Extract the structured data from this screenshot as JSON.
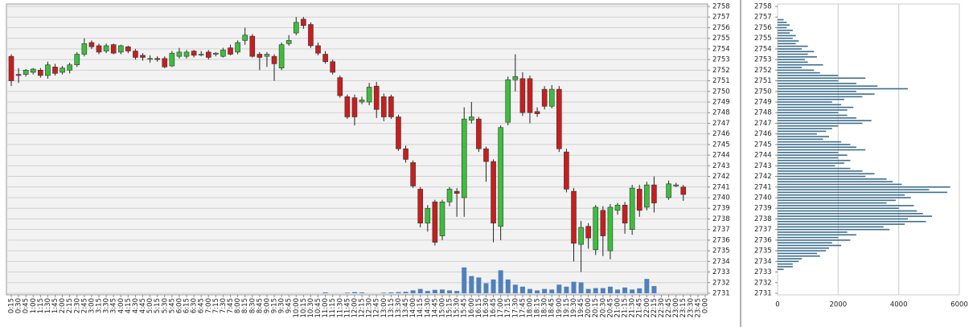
{
  "chart_data": [
    {
      "type": "candlestick",
      "x": [
        "0:15",
        "0:30",
        "0:45",
        "1:00",
        "1:15",
        "1:30",
        "1:45",
        "2:00",
        "2:15",
        "2:30",
        "2:45",
        "3:00",
        "3:15",
        "3:30",
        "3:45",
        "4:00",
        "4:15",
        "4:30",
        "4:45",
        "5:00",
        "5:15",
        "5:30",
        "5:45",
        "6:00",
        "6:15",
        "6:30",
        "6:45",
        "7:00",
        "7:15",
        "7:30",
        "7:45",
        "8:00",
        "8:15",
        "8:30",
        "8:45",
        "9:00",
        "9:15",
        "9:30",
        "9:45",
        "10:00",
        "10:15",
        "10:30",
        "10:45",
        "11:00",
        "11:15",
        "11:30",
        "11:45",
        "12:00",
        "12:15",
        "12:30",
        "12:45",
        "13:00",
        "13:15",
        "13:30",
        "13:45",
        "14:00",
        "14:15",
        "14:30",
        "14:45",
        "15:00",
        "15:15",
        "15:30",
        "15:45",
        "16:00",
        "16:15",
        "16:30",
        "16:45",
        "17:00",
        "17:15",
        "17:30",
        "17:45",
        "18:00",
        "18:15",
        "18:30",
        "18:45",
        "19:00",
        "19:15",
        "19:30",
        "19:45",
        "20:00",
        "20:15",
        "20:30",
        "20:45",
        "21:00",
        "21:15",
        "21:30",
        "21:45",
        "22:00",
        "22:15",
        "22:30",
        "22:45",
        "23:00",
        "23:15",
        "23:30",
        "23:45",
        "0:00"
      ],
      "open": [
        2753.3,
        2751.6,
        2751.6,
        2751.8,
        2752.0,
        2751.5,
        2752.3,
        2751.8,
        2752.0,
        2752.5,
        2753.5,
        2754.6,
        2754.3,
        2753.8,
        2754.4,
        2753.7,
        2754.2,
        2753.8,
        2753.4,
        2753.1,
        2753.1,
        2753.1,
        2752.4,
        2753.3,
        2753.3,
        2753.8,
        2753.5,
        2753.7,
        2753.5,
        2753.3,
        2754.1,
        2753.7,
        2754.8,
        2755.2,
        2753.5,
        2753.3,
        2753.3,
        2752.2,
        2754.5,
        2755.5,
        2756.8,
        2756.3,
        2754.3,
        2753.5,
        2752.8,
        2751.3,
        2749.5,
        2749.4,
        2749.0,
        2749.0,
        2750.5,
        2749.5,
        2749.5,
        2747.6,
        2744.6,
        2743.3,
        2740.8,
        2737.6,
        2739.6,
        2736.4,
        2739.6,
        2740.6,
        2740.0,
        2747.3,
        2747.4,
        2744.6,
        2743.4,
        2737.3,
        2747.1,
        2751.1,
        2751.2,
        2751.2,
        2748.1,
        2750.2,
        2748.6,
        2750.2,
        2744.3,
        2740.6,
        2735.6,
        2737.3,
        2735.1,
        2738.8,
        2735.0,
        2738.8,
        2739.3,
        2737.0,
        2740.8,
        2739.1,
        2741.2,
        null,
        2740.0,
        2741.1,
        2741.0,
        null,
        null,
        null
      ],
      "high": [
        2753.5,
        2752.2,
        2752.1,
        2752.2,
        2752.2,
        2752.8,
        2752.6,
        2752.4,
        2752.7,
        2753.7,
        2755.0,
        2754.8,
        2754.5,
        2754.5,
        2754.5,
        2754.4,
        2754.3,
        2754.0,
        2753.6,
        2753.4,
        2753.3,
        2753.3,
        2753.8,
        2754.1,
        2753.9,
        2753.9,
        2753.8,
        2753.9,
        2753.7,
        2754.1,
        2754.4,
        2754.8,
        2756.0,
        2755.4,
        2753.7,
        2753.7,
        2753.5,
        2754.6,
        2755.3,
        2757.0,
        2757.0,
        2756.5,
        2754.6,
        2753.8,
        2753.0,
        2751.5,
        2749.7,
        2749.7,
        2749.5,
        2750.8,
        2750.9,
        2749.8,
        2749.7,
        2747.8,
        2744.9,
        2743.5,
        2741.0,
        2739.3,
        2739.8,
        2739.8,
        2741.0,
        2740.9,
        2748.5,
        2749.0,
        2747.6,
        2744.8,
        2743.6,
        2746.8,
        2751.4,
        2753.5,
        2751.8,
        2751.5,
        2748.5,
        2750.5,
        2750.6,
        2750.5,
        2744.6,
        2740.9,
        2737.8,
        2737.6,
        2739.3,
        2739.2,
        2739.4,
        2739.5,
        2739.6,
        2741.2,
        2741.2,
        2741.5,
        2742.0,
        null,
        2741.6,
        2741.4,
        2741.2,
        null,
        null,
        null
      ],
      "low": [
        2750.5,
        2750.8,
        2751.4,
        2751.6,
        2751.3,
        2751.2,
        2751.5,
        2751.6,
        2751.7,
        2752.3,
        2753.3,
        2754.0,
        2753.5,
        2753.6,
        2753.5,
        2753.5,
        2753.6,
        2753.0,
        2752.9,
        2752.7,
        2752.8,
        2752.2,
        2752.3,
        2753.1,
        2753.1,
        2753.2,
        2753.3,
        2753.0,
        2753.3,
        2753.2,
        2753.4,
        2753.5,
        2754.4,
        2753.2,
        2752.0,
        2752.3,
        2751.0,
        2752.0,
        2754.3,
        2755.3,
        2755.9,
        2754.1,
        2753.4,
        2752.6,
        2751.6,
        2749.4,
        2747.4,
        2746.8,
        2748.8,
        2748.7,
        2747.5,
        2747.2,
        2747.4,
        2744.4,
        2743.3,
        2740.9,
        2737.2,
        2736.8,
        2735.5,
        2736.0,
        2739.2,
        2738.2,
        2738.2,
        2747.0,
        2744.3,
        2741.5,
        2735.8,
        2736.0,
        2746.8,
        2750.0,
        2747.7,
        2747.0,
        2747.6,
        2748.3,
        2748.4,
        2744.3,
        2740.5,
        2734.0,
        2733.0,
        2735.2,
        2734.6,
        2734.5,
        2734.2,
        2738.4,
        2736.6,
        2736.5,
        2738.2,
        2738.8,
        2738.6,
        null,
        2739.8,
        2741.0,
        2739.7,
        null,
        null,
        null
      ],
      "close": [
        2751.0,
        2751.5,
        2752.0,
        2752.1,
        2751.5,
        2752.5,
        2751.7,
        2752.2,
        2752.5,
        2753.5,
        2754.5,
        2754.2,
        2753.7,
        2754.3,
        2753.6,
        2754.3,
        2753.8,
        2753.2,
        2753.2,
        2753.1,
        2753.0,
        2752.3,
        2753.6,
        2753.7,
        2753.7,
        2753.4,
        2753.5,
        2753.2,
        2753.6,
        2753.9,
        2753.5,
        2754.6,
        2755.3,
        2753.3,
        2753.2,
        2753.5,
        2752.6,
        2754.4,
        2754.8,
        2756.5,
        2756.2,
        2754.3,
        2753.6,
        2752.8,
        2751.8,
        2749.6,
        2747.6,
        2747.6,
        2749.2,
        2750.4,
        2748.3,
        2747.6,
        2747.6,
        2744.6,
        2743.6,
        2741.1,
        2737.6,
        2739.0,
        2735.8,
        2739.6,
        2740.8,
        2740.4,
        2747.4,
        2747.6,
        2744.6,
        2743.4,
        2737.6,
        2746.6,
        2751.1,
        2751.4,
        2748.0,
        2748.0,
        2747.9,
        2748.6,
        2750.2,
        2744.6,
        2740.8,
        2735.7,
        2737.2,
        2736.2,
        2739.1,
        2736.4,
        2739.1,
        2739.3,
        2737.6,
        2740.9,
        2738.8,
        2741.2,
        2739.5,
        null,
        2741.3,
        2741.2,
        2740.3,
        null,
        null,
        null
      ],
      "up_color": "#3cbf3c",
      "down_color": "#c81e1e",
      "series": [
        {
          "name": "Volume",
          "axis": "y2",
          "color": "#4f81bd",
          "values": [
            0,
            0,
            0,
            0,
            0,
            0,
            0,
            0,
            0,
            0,
            0,
            0,
            0,
            0,
            0,
            0,
            0,
            0,
            0,
            0,
            0,
            0,
            0,
            0,
            0,
            0,
            0,
            0,
            0,
            0,
            0,
            0,
            0,
            0,
            0,
            0,
            0,
            0,
            0,
            0,
            0,
            0,
            0,
            0.3,
            0,
            0,
            0.2,
            0.4,
            0.3,
            0,
            0,
            0.2,
            0.3,
            0.4,
            0.5,
            1.0,
            1.5,
            0.8,
            1.2,
            1.3,
            1.0,
            0.8,
            9.0,
            6.0,
            5.5,
            3.5,
            4.8,
            8.0,
            4.8,
            3.0,
            2.3,
            1.5,
            1.0,
            1.5,
            1.3,
            3.0,
            2.3,
            4.0,
            3.8,
            1.5,
            1.8,
            1.8,
            2.3,
            1.3,
            2.0,
            1.3,
            1.7,
            5.0,
            2.5,
            null,
            null,
            null,
            null,
            null,
            null,
            null
          ]
        }
      ],
      "ylim": [
        2731,
        2758
      ],
      "yticks": [
        2731,
        2732,
        2733,
        2734,
        2735,
        2736,
        2737,
        2738,
        2739,
        2740,
        2741,
        2742,
        2743,
        2744,
        2745,
        2746,
        2747,
        2748,
        2749,
        2750,
        2751,
        2752,
        2753,
        2754,
        2755,
        2756,
        2757,
        2758
      ],
      "y2lim": [
        0,
        100
      ],
      "grid": true
    },
    {
      "type": "barh",
      "y": [
        2756.75,
        2756.5,
        2756.25,
        2756,
        2755.75,
        2755.5,
        2755.25,
        2755,
        2754.75,
        2754.5,
        2754.25,
        2754,
        2753.75,
        2753.5,
        2753.25,
        2753,
        2752.75,
        2752.5,
        2752.25,
        2752,
        2751.75,
        2751.5,
        2751.25,
        2751,
        2750.75,
        2750.5,
        2750.25,
        2750,
        2749.75,
        2749.5,
        2749.25,
        2749,
        2748.75,
        2748.5,
        2748.25,
        2748,
        2747.75,
        2747.5,
        2747.25,
        2747,
        2746.75,
        2746.5,
        2746.25,
        2746,
        2745.75,
        2745.5,
        2745.25,
        2745,
        2744.75,
        2744.5,
        2744.25,
        2744,
        2743.75,
        2743.5,
        2743.25,
        2743,
        2742.75,
        2742.5,
        2742.25,
        2742,
        2741.75,
        2741.5,
        2741.25,
        2741,
        2740.75,
        2740.5,
        2740.25,
        2740,
        2739.75,
        2739.5,
        2739.25,
        2739,
        2738.75,
        2738.5,
        2738.25,
        2738,
        2737.75,
        2737.5,
        2737.25,
        2737,
        2736.75,
        2736.5,
        2736.25,
        2736,
        2735.75,
        2735.5,
        2735.25,
        2735,
        2734.75,
        2734.5,
        2734.25,
        2734,
        2733.75,
        2733.5,
        2733.25
      ],
      "values": [
        200,
        300,
        400,
        300,
        500,
        400,
        600,
        500,
        700,
        600,
        1000,
        800,
        1200,
        1000,
        1300,
        900,
        1000,
        1500,
        800,
        1200,
        1400,
        2000,
        2900,
        2000,
        2600,
        3300,
        4300,
        2600,
        3200,
        2800,
        2200,
        1800,
        2100,
        2500,
        2300,
        2000,
        2300,
        2600,
        3100,
        2800,
        2000,
        1800,
        1600,
        1300,
        1700,
        1500,
        2100,
        2400,
        2600,
        2900,
        2000,
        2300,
        2000,
        2400,
        2200,
        1900,
        2400,
        2800,
        3200,
        2900,
        3600,
        3800,
        4100,
        5700,
        5000,
        5600,
        4200,
        4400,
        3900,
        3600,
        4500,
        4000,
        4600,
        4800,
        5100,
        4300,
        4900,
        4200,
        3500,
        3700,
        2300,
        2600,
        2000,
        2400,
        1800,
        2100,
        1700,
        1600,
        1300,
        1400,
        800,
        700,
        500,
        500,
        200
      ],
      "color": "#3d6e8e",
      "xlim": [
        0,
        6000
      ],
      "xticks": [
        0,
        2000,
        4000,
        6000
      ],
      "ylim": [
        2731,
        2758
      ],
      "yticks": [
        2731,
        2732,
        2733,
        2734,
        2735,
        2736,
        2737,
        2738,
        2739,
        2740,
        2741,
        2742,
        2743,
        2744,
        2745,
        2746,
        2747,
        2748,
        2749,
        2750,
        2751,
        2752,
        2753,
        2754,
        2755,
        2756,
        2757,
        2758
      ],
      "grid": true
    }
  ]
}
